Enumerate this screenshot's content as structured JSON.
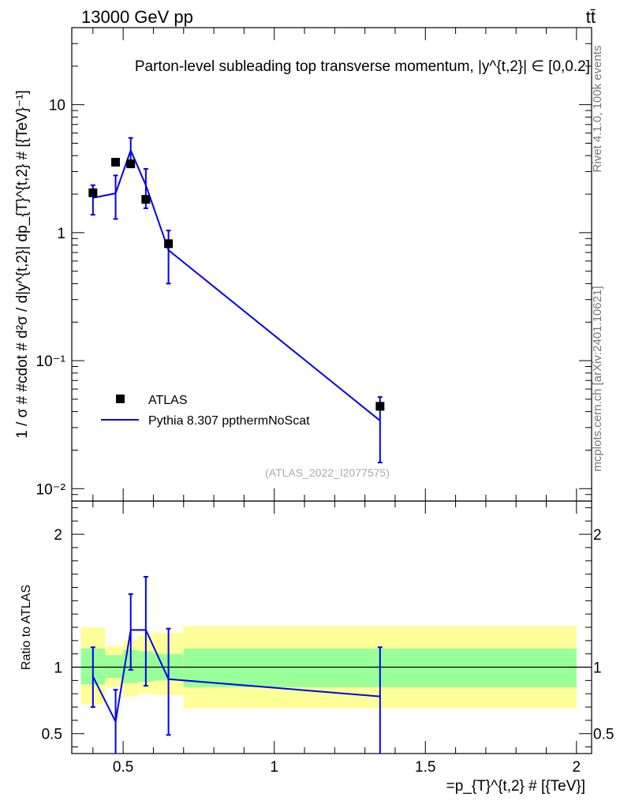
{
  "header": {
    "energy": "13000 GeV pp",
    "process": "tt̄",
    "title": "Parton-level subleading top transverse momentum, |y^{t,2}| ∈ [0,0.2]"
  },
  "side_labels": {
    "rivet": "Rivet 4.1.0,  100k events",
    "source": "mcplots.cern.ch [arXiv:2401.10621]"
  },
  "watermark": "(ATLAS_2022_I2077575)",
  "colors": {
    "mc": "#0000ee",
    "data": "#000000",
    "band_inner": "#99ff99",
    "band_outer": "#ffff99"
  },
  "chart_data": [
    {
      "type": "scatter",
      "panel": "main",
      "ylabel": "1 / σ # #cdot # d²σ / d|y^{t,2}| dp_{T}^{t,2} # [{TeV}⁻¹]",
      "yscale": "log",
      "ylim": [
        0.008,
        40
      ],
      "xlim": [
        0.33,
        2.05
      ],
      "ytick_labels": [
        "10⁻²",
        "10⁻¹",
        "1",
        "10"
      ],
      "ytick_values": [
        0.01,
        0.1,
        1,
        10
      ],
      "legend": {
        "position": "middle-left",
        "entries": [
          "ATLAS",
          "Pythia 8.307 ppthermNoScat"
        ]
      },
      "series": [
        {
          "name": "ATLAS",
          "style": "markers",
          "x": [
            0.4,
            0.475,
            0.525,
            0.575,
            0.65,
            1.35
          ],
          "y": [
            2.05,
            3.55,
            3.45,
            1.82,
            0.82,
            0.044
          ]
        },
        {
          "name": "Pythia 8.307 ppthermNoScat",
          "style": "line",
          "x": [
            0.4,
            0.475,
            0.525,
            0.575,
            0.65,
            1.35
          ],
          "y": [
            1.87,
            2.03,
            4.4,
            2.35,
            0.73,
            0.034
          ],
          "yerr_low": [
            1.38,
            1.28,
            3.45,
            1.55,
            0.4,
            0.016
          ],
          "yerr_high": [
            2.35,
            2.8,
            5.5,
            3.15,
            1.04,
            0.052
          ]
        }
      ]
    },
    {
      "type": "line",
      "panel": "ratio",
      "ylabel": "Ratio to ATLAS",
      "xlabel": "=p_{T}^{t,2} # [{TeV}]",
      "ylim": [
        0.35,
        2.25
      ],
      "xlim": [
        0.33,
        2.05
      ],
      "xtick_labels": [
        "0.5",
        "1",
        "1.5",
        "2"
      ],
      "xtick_values": [
        0.5,
        1.0,
        1.5,
        2.0
      ],
      "ytick_labels": [
        "0.5",
        "1",
        "2"
      ],
      "ytick_values": [
        0.5,
        1.0,
        2.0
      ],
      "bands": {
        "edges": [
          0.36,
          0.44,
          0.5,
          0.55,
          0.6,
          0.7,
          2.0
        ],
        "inner_low": [
          0.87,
          0.92,
          0.88,
          0.89,
          0.9,
          0.85
        ],
        "inner_high": [
          1.14,
          1.09,
          1.13,
          1.12,
          1.1,
          1.14
        ],
        "outer_low": [
          0.72,
          0.85,
          0.78,
          0.8,
          0.79,
          0.69
        ],
        "outer_high": [
          1.3,
          1.16,
          1.2,
          1.24,
          1.26,
          1.31
        ]
      },
      "series": [
        {
          "name": "Pythia 8.307 ppthermNoScat",
          "x": [
            0.4,
            0.475,
            0.525,
            0.575,
            0.65,
            1.35
          ],
          "y": [
            0.93,
            0.59,
            1.28,
            1.28,
            0.91,
            0.78
          ],
          "yerr_low": [
            0.7,
            0.3,
            0.98,
            0.86,
            0.49,
            0.3
          ],
          "yerr_high": [
            1.15,
            0.83,
            1.55,
            1.68,
            1.29,
            1.15
          ]
        }
      ]
    }
  ]
}
